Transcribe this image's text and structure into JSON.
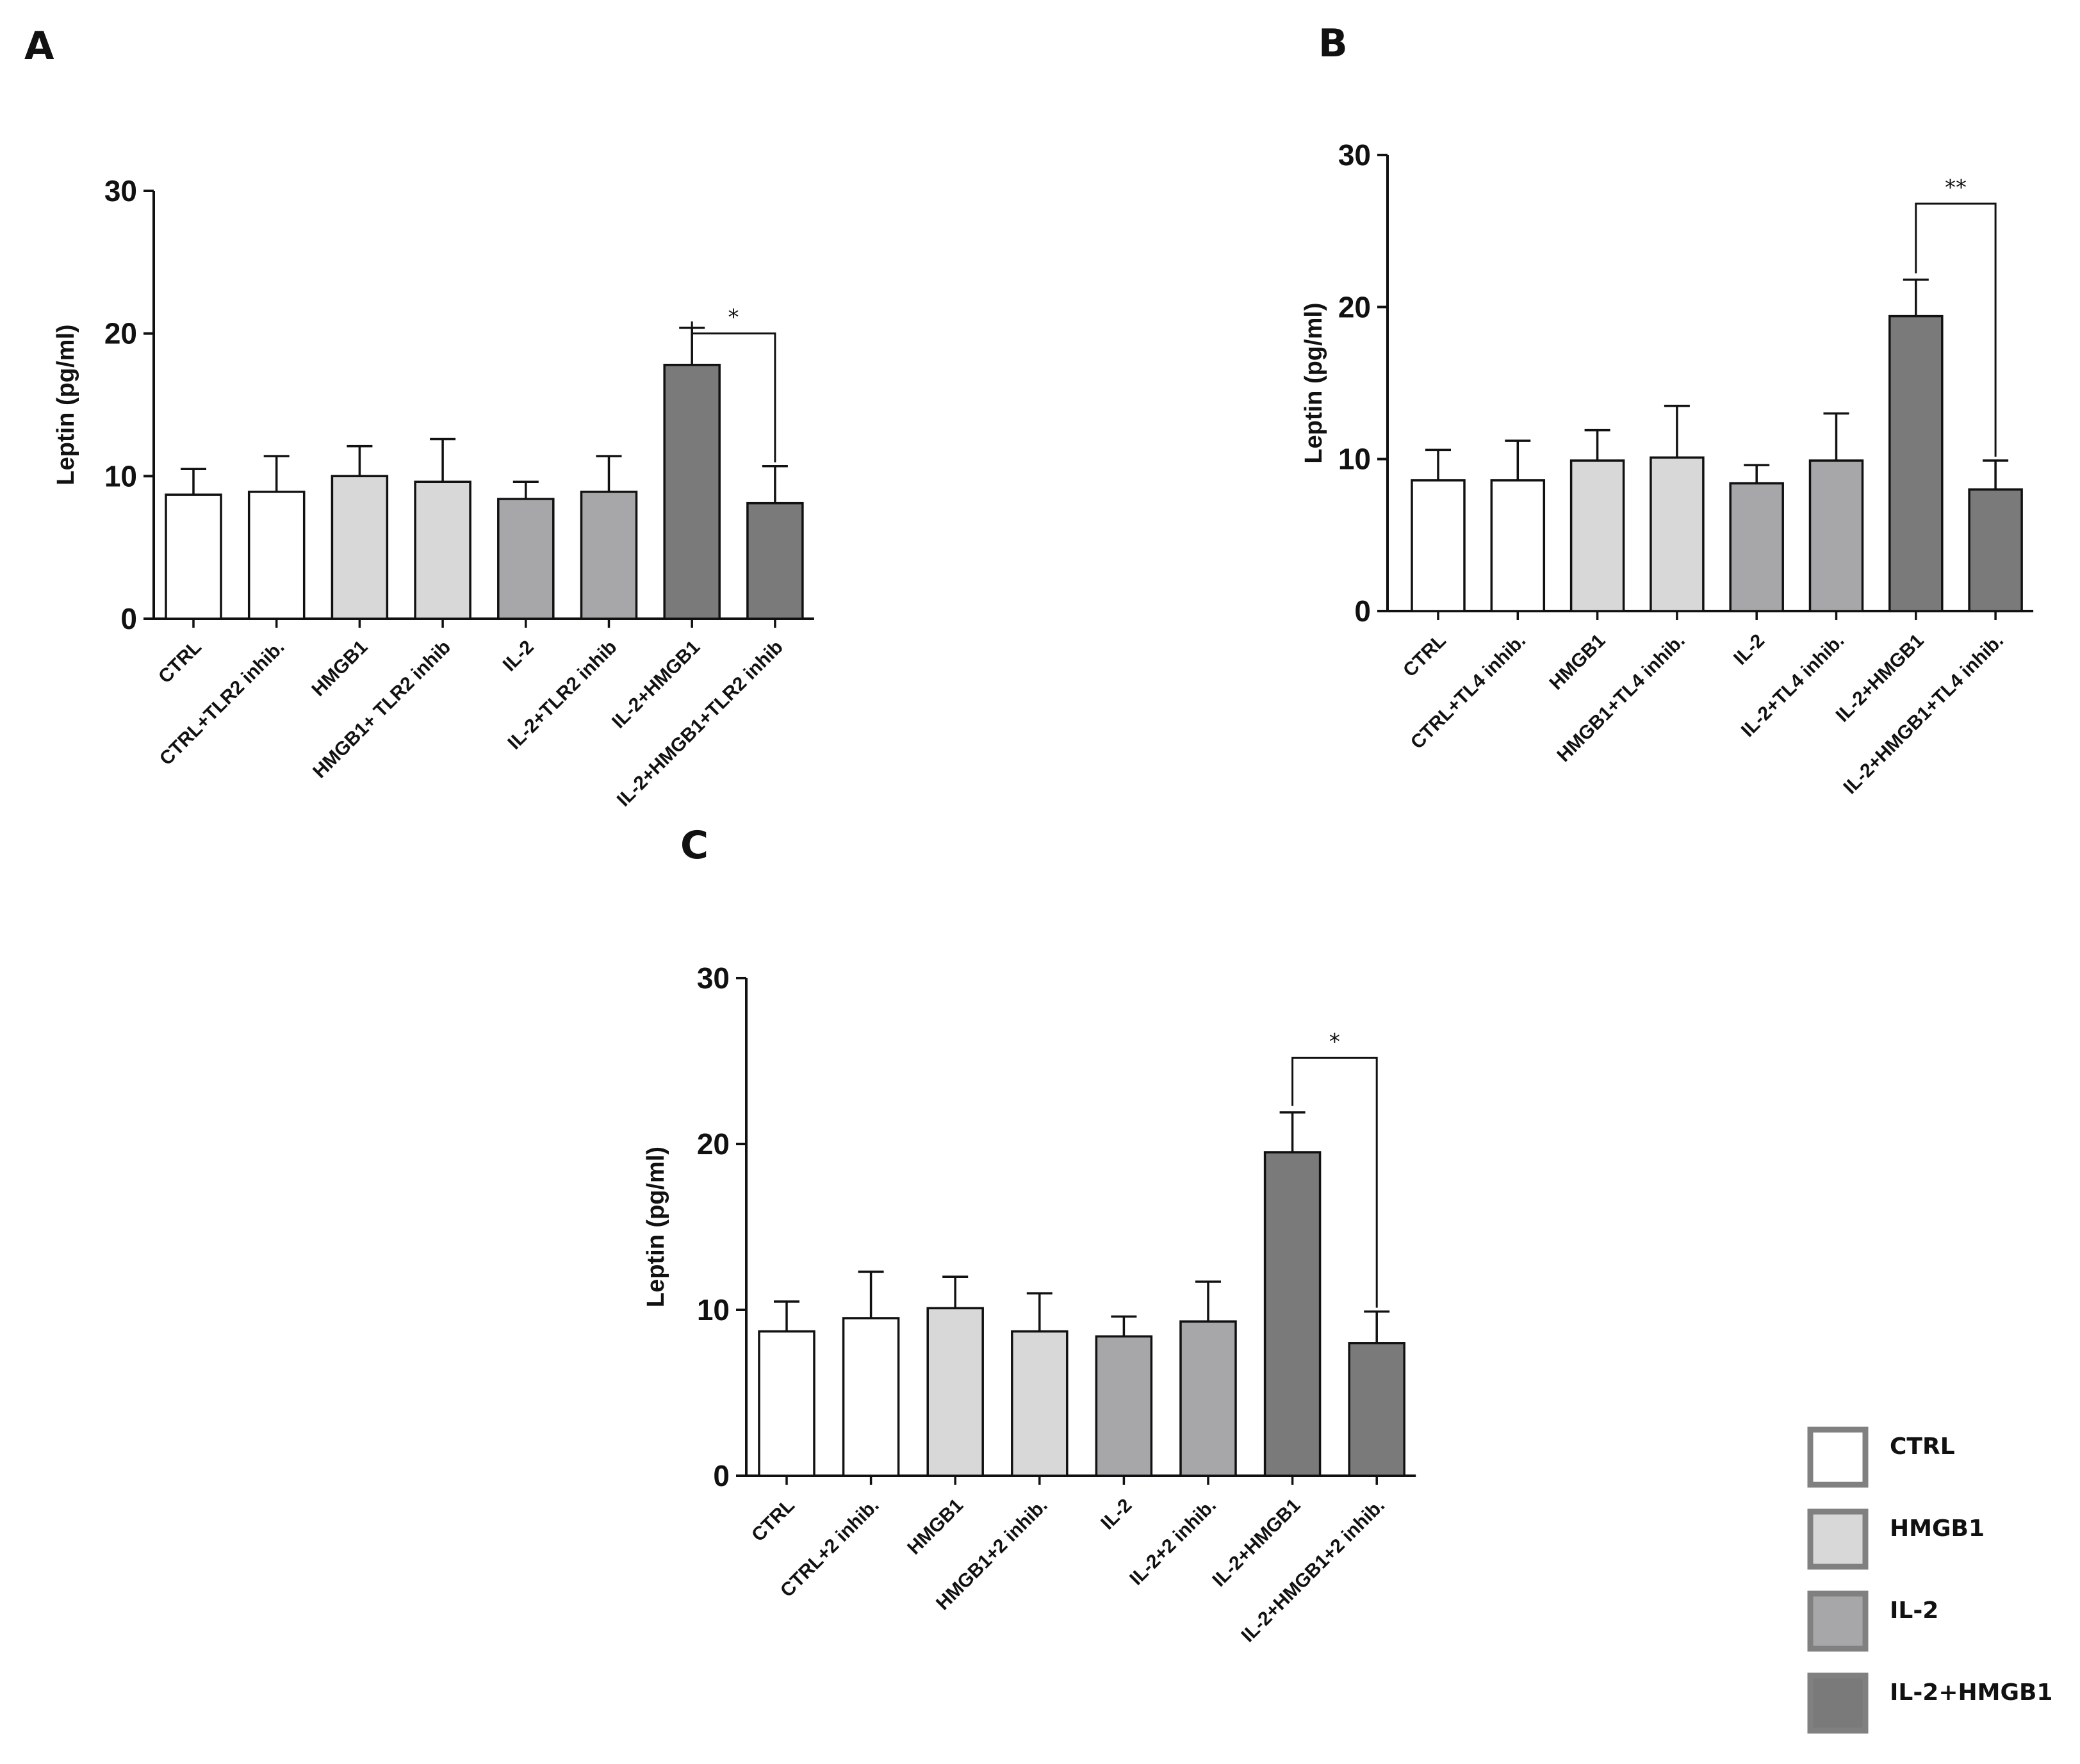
{
  "colors": {
    "ctrl": "#ffffff",
    "hmgb1": "#d8d8d8",
    "il2": "#a7a7aa",
    "il2hmgb1": "#7a7a7a",
    "axis": "#111111",
    "legend_border": "#808080"
  },
  "chart_data": [
    {
      "panel": "A",
      "type": "bar",
      "ylabel": "Leptin (pg/ml)",
      "ylim": [
        0,
        30
      ],
      "yticks": [
        "0",
        "10",
        "20",
        "30"
      ],
      "categories": [
        "CTRL",
        "CTRL+TLR2 inhib.",
        "HMGB1",
        "HMGB1+ TLR2 inhib",
        "IL-2",
        "IL-2+TLR2 inhib",
        "IL-2+HMGB1",
        "IL-2+HMGB1+TLR2 inhib"
      ],
      "groups": [
        "ctrl",
        "ctrl",
        "hmgb1",
        "hmgb1",
        "il2",
        "il2",
        "il2hmgb1",
        "il2hmgb1"
      ],
      "values": [
        8.7,
        8.9,
        10.0,
        9.6,
        8.4,
        8.9,
        17.8,
        8.1
      ],
      "errors": [
        1.8,
        2.5,
        2.1,
        3.0,
        1.2,
        2.5,
        2.6,
        2.6
      ],
      "significance": {
        "from": 6,
        "to": 7,
        "level": 20.0,
        "label": "*"
      }
    },
    {
      "panel": "B",
      "type": "bar",
      "ylabel": "Leptin (pg/ml)",
      "ylim": [
        0,
        30
      ],
      "yticks": [
        "0",
        "10",
        "20",
        "30"
      ],
      "categories": [
        "CTRL",
        "CTRL+TL4 inhib.",
        "HMGB1",
        "HMGB1+TL4 inhib.",
        "IL-2",
        "IL-2+TL4 inhib.",
        "IL-2+HMGB1",
        "IL-2+HMGB1+TL4 inhib."
      ],
      "groups": [
        "ctrl",
        "ctrl",
        "hmgb1",
        "hmgb1",
        "il2",
        "il2",
        "il2hmgb1",
        "il2hmgb1"
      ],
      "values": [
        8.6,
        8.6,
        9.9,
        10.1,
        8.4,
        9.9,
        19.4,
        8.0
      ],
      "errors": [
        2.0,
        2.6,
        2.0,
        3.4,
        1.2,
        3.1,
        2.4,
        1.9
      ],
      "significance": {
        "from": 6,
        "to": 7,
        "level": 26.8,
        "label": "**"
      }
    },
    {
      "panel": "C",
      "type": "bar",
      "ylabel": "Leptin (pg/ml)",
      "ylim": [
        0,
        30
      ],
      "yticks": [
        "0",
        "10",
        "20",
        "30"
      ],
      "categories": [
        "CTRL",
        "CTRL+2 inhib.",
        "HMGB1",
        "HMGB1+2 inhib.",
        "IL-2",
        "IL-2+2 inhib.",
        "IL-2+HMGB1",
        "IL-2+HMGB1+2 inhib."
      ],
      "groups": [
        "ctrl",
        "ctrl",
        "hmgb1",
        "hmgb1",
        "il2",
        "il2",
        "il2hmgb1",
        "il2hmgb1"
      ],
      "values": [
        8.7,
        9.5,
        10.1,
        8.7,
        8.4,
        9.3,
        19.5,
        8.0
      ],
      "errors": [
        1.8,
        2.8,
        1.9,
        2.3,
        1.2,
        2.4,
        2.4,
        1.9
      ],
      "significance": {
        "from": 6,
        "to": 7,
        "level": 25.2,
        "label": "*"
      }
    }
  ],
  "legend": [
    {
      "label": "CTRL",
      "group": "ctrl"
    },
    {
      "label": "HMGB1",
      "group": "hmgb1"
    },
    {
      "label": "IL-2",
      "group": "il2"
    },
    {
      "label": "IL-2+HMGB1",
      "group": "il2hmgb1"
    }
  ]
}
